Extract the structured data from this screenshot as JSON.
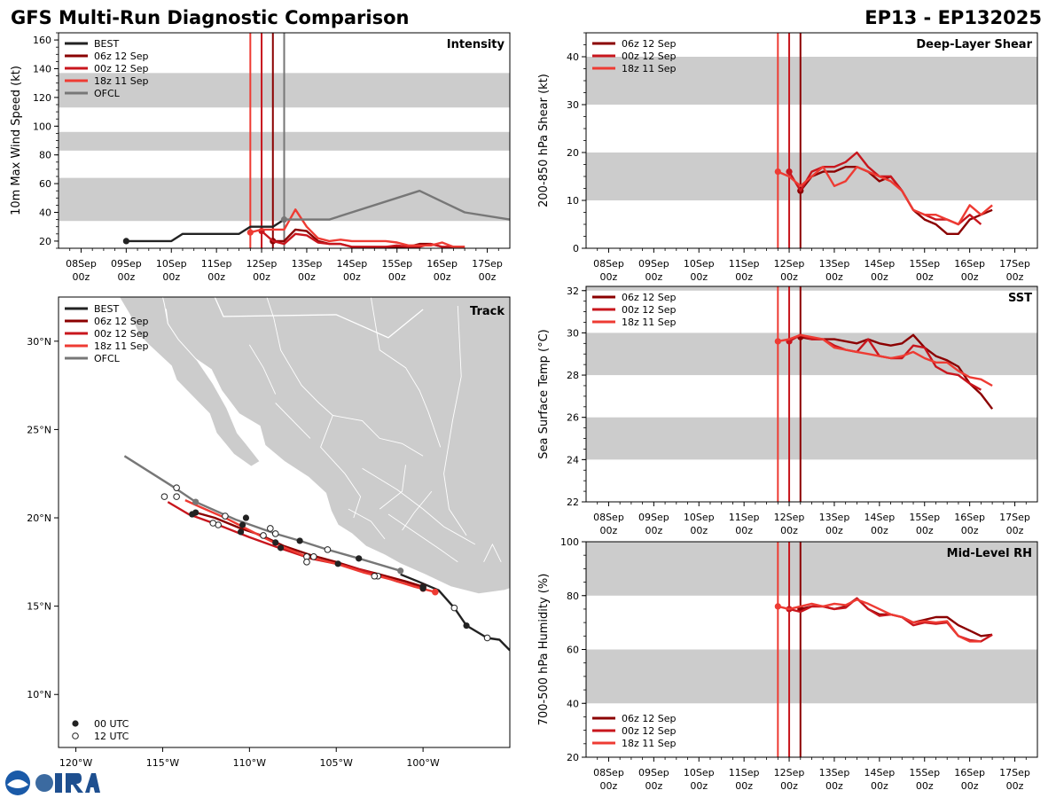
{
  "header": {
    "title": "GFS Multi-Run Diagnostic Comparison",
    "storm": "EP13 - EP132025"
  },
  "time_axis": {
    "labels": [
      [
        "08Sep",
        "00z"
      ],
      [
        "09Sep",
        "00z"
      ],
      [
        "10Sep",
        "00z"
      ],
      [
        "11Sep",
        "00z"
      ],
      [
        "12Sep",
        "00z"
      ],
      [
        "13Sep",
        "00z"
      ],
      [
        "14Sep",
        "00z"
      ],
      [
        "15Sep",
        "00z"
      ],
      [
        "16Sep",
        "00z"
      ],
      [
        "17Sep",
        "00z"
      ]
    ]
  },
  "colors": {
    "best": "#222222",
    "run06z12": "#8b0000",
    "run00z12": "#c8161d",
    "run18z11": "#ee3b33",
    "ofcl": "#777777",
    "band": "#cccccc",
    "land": "#cccccc"
  },
  "init_lines": [
    {
      "label": "18z 11 Sep",
      "day": 3.75,
      "color_key": "run18z11"
    },
    {
      "label": "00z 12 Sep",
      "day": 4.0,
      "color_key": "run00z12"
    },
    {
      "label": "06z 12 Sep",
      "day": 4.25,
      "color_key": "run06z12"
    }
  ],
  "ofcl_line_day": 4.5,
  "chart_data": [
    {
      "id": "intensity",
      "type": "line",
      "title": "Intensity",
      "ylabel": "10m Max Wind Speed (kt)",
      "ylim": [
        15,
        165
      ],
      "yticks": [
        20,
        40,
        60,
        80,
        100,
        120,
        140,
        160
      ],
      "bands": [
        [
          34,
          64
        ],
        [
          83,
          96
        ],
        [
          113,
          137
        ]
      ],
      "legend": [
        "BEST",
        "06z 12 Sep",
        "00z 12 Sep",
        "18z 11 Sep",
        "OFCL"
      ],
      "legend_pos": "top-left",
      "series": [
        {
          "name": "BEST",
          "color_key": "best",
          "x": [
            1.0,
            1.25,
            1.5,
            1.75,
            2.0,
            2.25,
            2.5,
            2.75,
            3.0,
            3.25,
            3.5,
            3.75,
            4.0,
            4.25,
            4.5
          ],
          "y": [
            20,
            20,
            20,
            20,
            20,
            25,
            25,
            25,
            25,
            25,
            25,
            30,
            30,
            30,
            35
          ]
        },
        {
          "name": "06z 12 Sep",
          "color_key": "run06z12",
          "x": [
            4.25,
            4.5,
            4.75,
            5.0,
            5.25,
            5.5,
            5.75,
            6.0,
            6.25,
            6.5,
            6.75,
            7.0,
            7.25,
            7.5,
            7.75,
            8.0,
            8.25,
            8.5
          ],
          "y": [
            20,
            20,
            28,
            27,
            20,
            18,
            18,
            16,
            16,
            16,
            16,
            16,
            16,
            18,
            18,
            16,
            16,
            16
          ]
        },
        {
          "name": "00z 12 Sep",
          "color_key": "run00z12",
          "x": [
            4.0,
            4.25,
            4.5,
            4.75,
            5.0,
            5.25,
            5.5,
            5.75,
            6.0,
            6.25,
            6.5,
            6.75,
            7.0,
            7.25,
            7.5,
            7.75,
            8.0,
            8.25,
            8.5
          ],
          "y": [
            27,
            20,
            18,
            25,
            24,
            19,
            18,
            18,
            16,
            16,
            16,
            16,
            17,
            16,
            16,
            18,
            16,
            16,
            16
          ]
        },
        {
          "name": "18z 11 Sep",
          "color_key": "run18z11",
          "x": [
            3.75,
            4.0,
            4.25,
            4.5,
            4.75,
            5.0,
            5.25,
            5.5,
            5.75,
            6.0,
            6.25,
            6.5,
            6.75,
            7.0,
            7.25,
            7.5,
            7.75,
            8.0,
            8.25,
            8.5
          ],
          "y": [
            26,
            28,
            28,
            28,
            42,
            30,
            22,
            20,
            21,
            20,
            20,
            20,
            20,
            19,
            17,
            17,
            17,
            19,
            16,
            16
          ]
        },
        {
          "name": "OFCL",
          "color_key": "ofcl",
          "x": [
            4.5,
            5.0,
            5.5,
            7.5,
            8.5,
            9.5
          ],
          "y": [
            35,
            35,
            35,
            55,
            40,
            35
          ]
        }
      ]
    },
    {
      "id": "shear",
      "type": "line",
      "title": "Deep-Layer Shear",
      "ylabel": "200-850 hPa Shear (kt)",
      "ylim": [
        0,
        45
      ],
      "yticks": [
        0,
        10,
        20,
        30,
        40
      ],
      "bands": [
        [
          10,
          20
        ],
        [
          30,
          40
        ]
      ],
      "legend": [
        "06z 12 Sep",
        "00z 12 Sep",
        "18z 11 Sep"
      ],
      "legend_pos": "top-left",
      "series": [
        {
          "name": "06z 12 Sep",
          "color_key": "run06z12",
          "x": [
            4.25,
            4.5,
            4.75,
            5.0,
            5.25,
            5.5,
            5.75,
            6.0,
            6.25,
            6.5,
            6.75,
            7.0,
            7.25,
            7.5,
            7.75,
            8.0,
            8.25,
            8.5
          ],
          "y": [
            12,
            15,
            16,
            16,
            17,
            17,
            16,
            14,
            15,
            12,
            8,
            6,
            5,
            3,
            3,
            6,
            7,
            8
          ]
        },
        {
          "name": "00z 12 Sep",
          "color_key": "run00z12",
          "x": [
            4.0,
            4.25,
            4.5,
            4.75,
            5.0,
            5.25,
            5.5,
            5.75,
            6.0,
            6.25,
            6.5,
            6.75,
            7.0,
            7.25,
            7.5,
            7.75,
            8.0,
            8.25
          ],
          "y": [
            16,
            12,
            16,
            17,
            17,
            18,
            20,
            17,
            15,
            15,
            12,
            8,
            7,
            6,
            6,
            5,
            7,
            5
          ]
        },
        {
          "name": "18z 11 Sep",
          "color_key": "run18z11",
          "x": [
            3.75,
            4.0,
            4.25,
            4.5,
            4.75,
            5.0,
            5.25,
            5.5,
            5.75,
            6.0,
            6.25,
            6.5,
            6.75,
            7.0,
            7.25,
            7.5,
            7.75,
            8.0,
            8.25,
            8.5
          ],
          "y": [
            16,
            15,
            13,
            15,
            17,
            13,
            14,
            17,
            16,
            15,
            14,
            12,
            8,
            7,
            7,
            6,
            5,
            9,
            7,
            9
          ]
        }
      ]
    },
    {
      "id": "sst",
      "type": "line",
      "title": "SST",
      "ylabel": "Sea Surface Temp (°C)",
      "ylim": [
        22,
        32.2
      ],
      "yticks": [
        22,
        24,
        26,
        28,
        30,
        32
      ],
      "bands": [
        [
          24,
          26
        ],
        [
          28,
          30
        ],
        [
          32,
          32.2
        ]
      ],
      "legend": [
        "06z 12 Sep",
        "00z 12 Sep",
        "18z 11 Sep"
      ],
      "legend_pos": "top-left",
      "series": [
        {
          "name": "06z 12 Sep",
          "color_key": "run06z12",
          "x": [
            4.25,
            4.5,
            4.75,
            5.0,
            5.25,
            5.5,
            5.75,
            6.0,
            6.25,
            6.5,
            6.75,
            7.0,
            7.25,
            7.5,
            7.75,
            8.0,
            8.25,
            8.5
          ],
          "y": [
            29.8,
            29.7,
            29.7,
            29.7,
            29.6,
            29.5,
            29.7,
            29.5,
            29.4,
            29.5,
            29.9,
            29.3,
            28.9,
            28.7,
            28.4,
            27.6,
            27.1,
            26.4
          ]
        },
        {
          "name": "00z 12 Sep",
          "color_key": "run00z12",
          "x": [
            4.0,
            4.25,
            4.5,
            4.75,
            5.0,
            5.25,
            5.5,
            5.75,
            6.0,
            6.25,
            6.5,
            6.75,
            7.0,
            7.25,
            7.5,
            7.75,
            8.0,
            8.25
          ],
          "y": [
            29.6,
            29.9,
            29.7,
            29.7,
            29.4,
            29.2,
            29.1,
            29.7,
            28.9,
            28.8,
            28.8,
            29.4,
            29.3,
            28.4,
            28.1,
            28.0,
            27.6,
            27.3
          ]
        },
        {
          "name": "18z 11 Sep",
          "color_key": "run18z11",
          "x": [
            3.75,
            4.0,
            4.25,
            4.5,
            4.75,
            5.0,
            5.25,
            5.5,
            5.75,
            6.0,
            6.25,
            6.5,
            6.75,
            7.0,
            7.25,
            7.5,
            7.75,
            8.0,
            8.25,
            8.5
          ],
          "y": [
            29.6,
            29.7,
            29.9,
            29.8,
            29.7,
            29.3,
            29.2,
            29.1,
            29.0,
            28.9,
            28.8,
            28.9,
            29.1,
            28.8,
            28.6,
            28.6,
            28.2,
            27.9,
            27.8,
            27.5
          ]
        }
      ]
    },
    {
      "id": "rh",
      "type": "line",
      "title": "Mid-Level RH",
      "ylabel": "700-500 hPa Humidity (%)",
      "ylim": [
        20,
        100
      ],
      "yticks": [
        20,
        40,
        60,
        80,
        100
      ],
      "bands": [
        [
          40,
          60
        ],
        [
          80,
          100
        ]
      ],
      "legend": [
        "06z 12 Sep",
        "00z 12 Sep",
        "18z 11 Sep"
      ],
      "legend_pos": "bottom-left",
      "series": [
        {
          "name": "06z 12 Sep",
          "color_key": "run06z12",
          "x": [
            4.25,
            4.5,
            4.75,
            5.0,
            5.25,
            5.5,
            5.75,
            6.0,
            6.25,
            6.5,
            6.75,
            7.0,
            7.25,
            7.5,
            7.75,
            8.0,
            8.25,
            8.5
          ],
          "y": [
            75,
            76,
            76,
            75,
            76,
            79,
            75,
            73,
            73,
            72,
            70,
            71,
            72,
            72,
            69,
            67,
            65,
            65.5
          ]
        },
        {
          "name": "00z 12 Sep",
          "color_key": "run00z12",
          "x": [
            4.0,
            4.25,
            4.5,
            4.75,
            5.0,
            5.25,
            5.5,
            5.75,
            6.0,
            6.25,
            6.5,
            6.75,
            7.0,
            7.25,
            7.5,
            7.75,
            8.0,
            8.25,
            8.5
          ],
          "y": [
            75,
            74,
            76,
            76,
            75,
            75.5,
            79,
            75,
            72.5,
            73,
            72,
            69,
            70,
            69.5,
            70,
            65,
            63.5,
            63,
            65.5
          ]
        },
        {
          "name": "18z 11 Sep",
          "color_key": "run18z11",
          "x": [
            3.75,
            4.0,
            4.25,
            4.5,
            4.75,
            5.0,
            5.25,
            5.5,
            5.75,
            6.0,
            6.25,
            6.5,
            6.75,
            7.0,
            7.25,
            7.5,
            7.75,
            8.0,
            8.25
          ],
          "y": [
            76,
            75,
            76,
            77,
            76,
            77,
            76.5,
            78.5,
            77,
            75,
            73,
            72,
            70,
            70.5,
            70,
            70.5,
            65,
            63,
            63
          ]
        }
      ]
    },
    {
      "id": "track",
      "type": "scatter",
      "title": "Track",
      "xlim": [
        -121,
        -95
      ],
      "ylim": [
        7,
        32.5
      ],
      "xticks": [
        {
          "v": -120,
          "label": "120°W"
        },
        {
          "v": -115,
          "label": "115°W"
        },
        {
          "v": -110,
          "label": "110°W"
        },
        {
          "v": -105,
          "label": "105°W"
        },
        {
          "v": -100,
          "label": "100°W"
        }
      ],
      "yticks": [
        {
          "v": 10,
          "label": "10°N"
        },
        {
          "v": 15,
          "label": "15°N"
        },
        {
          "v": 20,
          "label": "20°N"
        },
        {
          "v": 25,
          "label": "25°N"
        },
        {
          "v": 30,
          "label": "30°N"
        }
      ],
      "legend": [
        "BEST",
        "06z 12 Sep",
        "00z 12 Sep",
        "18z 11 Sep",
        "OFCL"
      ],
      "marker_legend": [
        "00 UTC",
        "12 UTC"
      ],
      "series": [
        {
          "name": "BEST",
          "color_key": "best",
          "lon": [
            -95,
            -95.6,
            -96.3,
            -97.5,
            -98.2,
            -99.1,
            -100.3,
            -101.3
          ],
          "lat": [
            12.5,
            13.1,
            13.2,
            13.9,
            14.9,
            15.9,
            16.4,
            16.8
          ]
        },
        {
          "name": "OFCL",
          "color_key": "ofcl",
          "lon": [
            -101.3,
            -103.7,
            -105.5,
            -107.1,
            -108.5,
            -110.8,
            -113.1,
            -114.3,
            -117.2
          ],
          "lat": [
            17.0,
            17.7,
            18.2,
            18.7,
            19.1,
            19.9,
            20.9,
            21.7,
            23.5
          ]
        },
        {
          "name": "06z 12 Sep",
          "color_key": "run06z12",
          "lon": [
            -100.0,
            -101.0,
            -102.5,
            -103.7,
            -105.0,
            -106.5,
            -108.0,
            -109.3,
            -110.5,
            -112.0,
            -113.1
          ],
          "lat": [
            16.1,
            16.4,
            16.8,
            17.1,
            17.5,
            17.9,
            18.4,
            19.0,
            19.4,
            20.0,
            20.3
          ]
        },
        {
          "name": "00z 12 Sep",
          "color_key": "run00z12",
          "lon": [
            -100.0,
            -101.5,
            -103.0,
            -104.5,
            -106.5,
            -108.3,
            -110.0,
            -111.8,
            -113.5,
            -114.7
          ],
          "lat": [
            16.0,
            16.4,
            16.9,
            17.3,
            17.7,
            18.3,
            18.9,
            19.6,
            20.2,
            20.9
          ]
        },
        {
          "name": "18z 11 Sep",
          "color_key": "run18z11",
          "lon": [
            -99.3,
            -100.5,
            -101.8,
            -103.4,
            -105.0,
            -106.7,
            -108.2,
            -110.0,
            -111.4,
            -112.8,
            -113.7
          ],
          "lat": [
            15.8,
            16.1,
            16.5,
            16.9,
            17.4,
            17.8,
            18.4,
            19.3,
            20.0,
            20.6,
            21.0
          ]
        }
      ],
      "points_00utc": [
        [
          -97.5,
          13.9
        ],
        [
          -100.0,
          16.1
        ],
        [
          -103.7,
          17.7
        ],
        [
          -104.9,
          17.4
        ],
        [
          -107.1,
          18.7
        ],
        [
          -108.2,
          18.3
        ],
        [
          -108.5,
          18.6
        ],
        [
          -110.2,
          20.0
        ],
        [
          -110.4,
          19.6
        ],
        [
          -113.1,
          20.3
        ],
        [
          -113.3,
          20.2
        ],
        [
          -110.5,
          19.2
        ],
        [
          -100.0,
          16.0
        ]
      ],
      "points_12utc": [
        [
          -96.3,
          13.2
        ],
        [
          -98.2,
          14.9
        ],
        [
          -102.6,
          16.7
        ],
        [
          -102.8,
          16.7
        ],
        [
          -105.5,
          18.2
        ],
        [
          -106.3,
          17.8
        ],
        [
          -106.7,
          17.8
        ],
        [
          -106.7,
          17.5
        ],
        [
          -108.5,
          19.1
        ],
        [
          -108.8,
          19.4
        ],
        [
          -109.2,
          19.0
        ],
        [
          -111.4,
          20.1
        ],
        [
          -111.8,
          19.6
        ],
        [
          -112.1,
          19.7
        ],
        [
          -114.2,
          21.7
        ],
        [
          -114.2,
          21.2
        ],
        [
          -114.9,
          21.2
        ]
      ],
      "ofcl_points": [
        [
          -101.3,
          17.0
        ],
        [
          -113.1,
          20.9
        ]
      ]
    }
  ]
}
